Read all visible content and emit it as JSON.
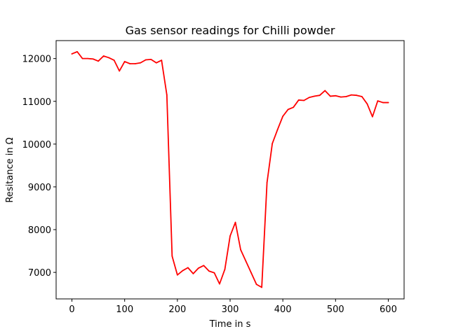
{
  "chart_data": {
    "type": "line",
    "title": "Gas sensor readings for Chilli powder",
    "xlabel": "Time in s",
    "ylabel": "Resitance in Ω",
    "xlim": [
      -30,
      630
    ],
    "ylim": [
      6380,
      12420
    ],
    "xticks": [
      0,
      100,
      200,
      300,
      400,
      500,
      600
    ],
    "yticks": [
      7000,
      8000,
      9000,
      10000,
      11000,
      12000
    ],
    "grid": false,
    "legend": "none",
    "series": [
      {
        "color": "#ff0000",
        "x": [
          0,
          10,
          20,
          30,
          40,
          50,
          60,
          70,
          80,
          90,
          100,
          110,
          120,
          130,
          140,
          150,
          160,
          170,
          180,
          190,
          200,
          210,
          220,
          230,
          240,
          250,
          260,
          270,
          280,
          290,
          300,
          310,
          320,
          330,
          340,
          350,
          360,
          370,
          380,
          390,
          400,
          410,
          420,
          430,
          440,
          450,
          460,
          470,
          480,
          490,
          500,
          510,
          520,
          530,
          540,
          550,
          560,
          570,
          580,
          590,
          600
        ],
        "y": [
          12110,
          12160,
          12000,
          12000,
          11990,
          11940,
          12060,
          12020,
          11960,
          11710,
          11930,
          11880,
          11880,
          11900,
          11970,
          11980,
          11900,
          11960,
          11150,
          7380,
          6940,
          7040,
          7110,
          6970,
          7100,
          7160,
          7030,
          6990,
          6730,
          7070,
          7850,
          8170,
          7530,
          7260,
          6990,
          6720,
          6650,
          9100,
          10010,
          10340,
          10650,
          10810,
          10860,
          11030,
          11020,
          11090,
          11120,
          11140,
          11250,
          11120,
          11130,
          11100,
          11110,
          11150,
          11140,
          11110,
          10940,
          10640,
          11010,
          10970,
          10970
        ]
      }
    ]
  }
}
